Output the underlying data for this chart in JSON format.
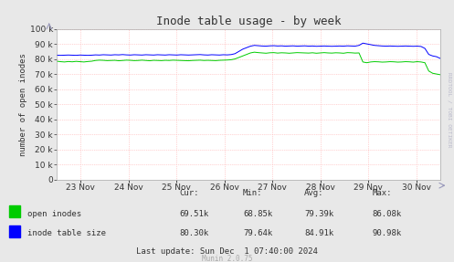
{
  "title": "Inode table usage - by week",
  "ylabel": "number of open inodes",
  "bg_color": "#e8e8e8",
  "plot_bg_color": "#ffffff",
  "grid_color": "#ffaaaa",
  "ylim": [
    0,
    100000
  ],
  "yticks": [
    0,
    10000,
    20000,
    30000,
    40000,
    50000,
    60000,
    70000,
    80000,
    90000,
    100000
  ],
  "x_tick_labels": [
    "23 Nov",
    "24 Nov",
    "25 Nov",
    "26 Nov",
    "27 Nov",
    "28 Nov",
    "29 Nov",
    "30 Nov"
  ],
  "stats": {
    "cur_label": "Cur:",
    "min_label": "Min:",
    "avg_label": "Avg:",
    "max_label": "Max:",
    "row1_label": "open inodes",
    "row1_cur": "69.51k",
    "row1_min": "68.85k",
    "row1_avg": "79.39k",
    "row1_max": "86.08k",
    "row2_label": "inode table size",
    "row2_cur": "80.30k",
    "row2_min": "79.64k",
    "row2_avg": "84.91k",
    "row2_max": "90.98k",
    "last_update": "Last update: Sun Dec  1 07:40:00 2024"
  },
  "watermark": "Munin 2.0.75",
  "rrdtool_label": "RRDTOOL / TOBI OETIKER",
  "green_color": "#00cc00",
  "blue_color": "#0000ff",
  "open_inodes_data": [
    78500,
    78200,
    78000,
    78300,
    78100,
    78400,
    78200,
    78000,
    78300,
    78500,
    79000,
    79200,
    79100,
    78900,
    79000,
    79100,
    78800,
    79000,
    79200,
    79100,
    78900,
    79000,
    79200,
    79000,
    78800,
    79100,
    79000,
    78900,
    79100,
    79000,
    79200,
    79100,
    79000,
    78900,
    78800,
    79000,
    79100,
    79200,
    79000,
    79100,
    79000,
    78900,
    79100,
    79200,
    79300,
    79500,
    80000,
    81000,
    82000,
    83000,
    84000,
    84500,
    84200,
    84000,
    83800,
    84100,
    84200,
    83900,
    84100,
    84000,
    83800,
    84000,
    84200,
    84100,
    84000,
    83900,
    84100,
    83800,
    84000,
    84200,
    84000,
    83900,
    84100,
    84000,
    83800,
    84200,
    84100,
    83900,
    84000,
    78000,
    77500,
    78000,
    78200,
    78100,
    77900,
    78000,
    78200,
    78100,
    77900,
    78000,
    78200,
    78100,
    77900,
    78200,
    78000,
    77500,
    72000,
    70500,
    70000,
    69510
  ],
  "inode_table_data": [
    82500,
    82400,
    82500,
    82600,
    82500,
    82400,
    82600,
    82500,
    82400,
    82500,
    82700,
    82600,
    82800,
    82700,
    82600,
    82800,
    82700,
    82900,
    82700,
    82600,
    82800,
    82700,
    82600,
    82800,
    82700,
    82600,
    82800,
    82700,
    82600,
    82800,
    82700,
    82600,
    82800,
    82700,
    82600,
    82700,
    82800,
    82900,
    82700,
    82600,
    82800,
    82700,
    82600,
    82800,
    82700,
    82900,
    83500,
    85000,
    86500,
    87500,
    88500,
    89000,
    88800,
    88600,
    88500,
    88700,
    88800,
    88600,
    88700,
    88500,
    88600,
    88700,
    88500,
    88600,
    88700,
    88500,
    88600,
    88400,
    88500,
    88600,
    88500,
    88400,
    88500,
    88600,
    88500,
    88700,
    88600,
    88500,
    89000,
    90500,
    90000,
    89500,
    89000,
    88800,
    88600,
    88500,
    88600,
    88500,
    88400,
    88500,
    88600,
    88500,
    88400,
    88500,
    88300,
    87000,
    83000,
    82000,
    81500,
    80300
  ]
}
